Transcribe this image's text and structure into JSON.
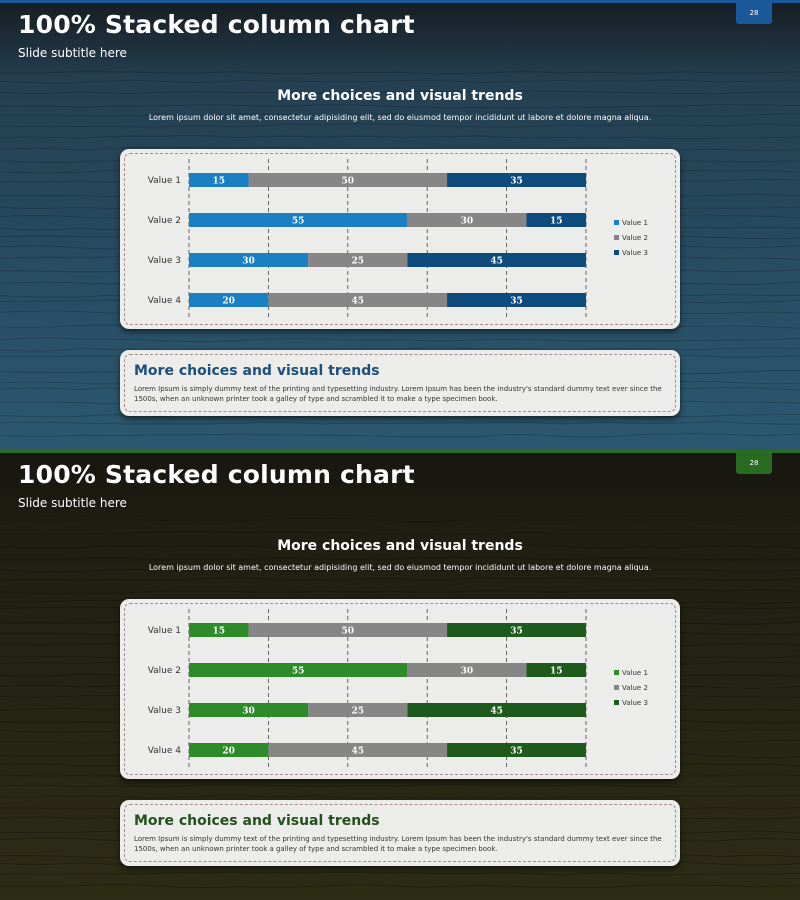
{
  "slides": [
    {
      "theme": "blue",
      "title": "100% Stacked column chart",
      "subtitle": "Slide subtitle here",
      "page_number": "28",
      "section_title": "More choices and visual trends",
      "section_text": "Lorem ipsum dolor sit amet, consectetur adipisiding elit, sed do eiusmod tempor incididunt ut labore et dolore magna aliqua.",
      "desc_title": "More choices and visual trends",
      "desc_text": "Lorem Ipsum is simply dummy text of the printing and typesetting industry. Lorem Ipsum has been the industry's standard dummy text ever since the 1500s, when an unknown printer took a galley of type and scrambled it to make a type specimen book.",
      "colors": {
        "bg_top": "#233a4a",
        "bg_bottom": "#2b5870",
        "header": "#1e262c",
        "accent": "#1b5a9a",
        "desc_title": "#1d4f7a",
        "series": [
          "#1b7fc4",
          "#868686",
          "#0f4c7e"
        ]
      }
    },
    {
      "theme": "green",
      "title": "100% Stacked column chart",
      "subtitle": "Slide subtitle here",
      "page_number": "28",
      "section_title": "More choices and visual trends",
      "section_text": "Lorem ipsum dolor sit amet, consectetur adipisiding elit, sed do eiusmod tempor incididunt ut labore et dolore magna aliqua.",
      "desc_title": "More choices and visual trends",
      "desc_text": "Lorem Ipsum is simply dummy text of the printing and typesetting industry. Lorem Ipsum has been the industry's standard dummy text ever since the 1500s, when an unknown printer took a galley of type and scrambled it to make a type specimen book.",
      "colors": {
        "bg_top": "#1c1b12",
        "bg_bottom": "#2d2c15",
        "header": "#1c1c16",
        "accent": "#2a6b22",
        "desc_title": "#24501d",
        "series": [
          "#2e8b2a",
          "#868686",
          "#1f5a1d"
        ]
      }
    }
  ],
  "chart_data": [
    {
      "type": "bar",
      "orientation": "horizontal",
      "stacked": "100%",
      "categories": [
        "Value 1",
        "Value 2",
        "Value 3",
        "Value 4"
      ],
      "series": [
        {
          "name": "Value 1",
          "values": [
            15,
            55,
            30,
            20
          ]
        },
        {
          "name": "Value 2",
          "values": [
            50,
            30,
            25,
            45
          ]
        },
        {
          "name": "Value 3",
          "values": [
            35,
            15,
            45,
            35
          ]
        }
      ],
      "xlim": [
        0,
        100
      ],
      "grid": true,
      "legend": "right"
    },
    {
      "type": "bar",
      "orientation": "horizontal",
      "stacked": "100%",
      "categories": [
        "Value 1",
        "Value 2",
        "Value 3",
        "Value 4"
      ],
      "series": [
        {
          "name": "Value 1",
          "values": [
            15,
            55,
            30,
            20
          ]
        },
        {
          "name": "Value 2",
          "values": [
            50,
            30,
            25,
            45
          ]
        },
        {
          "name": "Value 3",
          "values": [
            35,
            15,
            45,
            35
          ]
        }
      ],
      "xlim": [
        0,
        100
      ],
      "grid": true,
      "legend": "right"
    }
  ]
}
